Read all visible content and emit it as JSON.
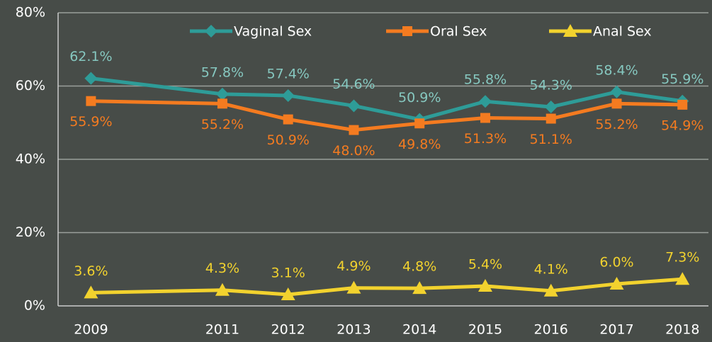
{
  "chart_data": {
    "type": "line",
    "x": [
      2009,
      2011,
      2012,
      2013,
      2014,
      2015,
      2016,
      2017,
      2018
    ],
    "xlim": [
      2008.5,
      2018.45
    ],
    "ylim": [
      0,
      80
    ],
    "yticks": [
      {
        "value": 0,
        "label": "0%"
      },
      {
        "value": 20,
        "label": "20%"
      },
      {
        "value": 40,
        "label": "40%"
      },
      {
        "value": 60,
        "label": "60%"
      },
      {
        "value": 80,
        "label": "80%"
      }
    ],
    "grid": true,
    "legend": "top",
    "series": [
      {
        "name": "Vaginal Sex",
        "color": "#2e9c98",
        "label_color": "#86c8c0",
        "marker": "diamond",
        "values": [
          62.1,
          57.8,
          57.4,
          54.6,
          50.9,
          55.8,
          54.3,
          58.4,
          55.9
        ],
        "value_labels": [
          "62.1%",
          "57.8%",
          "57.4%",
          "54.6%",
          "50.9%",
          "55.8%",
          "54.3%",
          "58.4%",
          "55.9%"
        ]
      },
      {
        "name": "Oral Sex",
        "color": "#f47b20",
        "label_color": "#f47b20",
        "marker": "square",
        "values": [
          55.9,
          55.2,
          50.9,
          48.0,
          49.8,
          51.3,
          51.1,
          55.2,
          54.9
        ],
        "value_labels": [
          "55.9%",
          "55.2%",
          "50.9%",
          "48.0%",
          "49.8%",
          "51.3%",
          "51.1%",
          "55.2%",
          "54.9%"
        ]
      },
      {
        "name": "Anal Sex",
        "color": "#f2d22e",
        "label_color": "#f2d22e",
        "marker": "triangle",
        "values": [
          3.6,
          4.3,
          3.1,
          4.9,
          4.8,
          5.4,
          4.1,
          6.0,
          7.3
        ],
        "value_labels": [
          "3.6%",
          "4.3%",
          "3.1%",
          "4.9%",
          "4.8%",
          "5.4%",
          "4.1%",
          "6.0%",
          "7.3%"
        ]
      }
    ]
  }
}
